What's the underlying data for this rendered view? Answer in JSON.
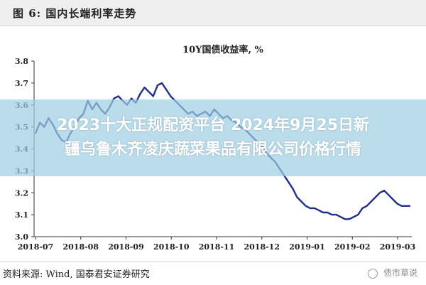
{
  "figure_title": "图 6:   国内长端利率走势",
  "overlay_text": {
    "line1": "2023十大正规配资平台 2024年9月25日新",
    "line2": "疆乌鲁木齐凌庆蔬菜果品有限公司价格行情"
  },
  "source_text": "资料来源:   Wind,  国泰君安证券研究",
  "watermark_text": "债市草说",
  "colors": {
    "line": "#1f2f8a",
    "overlay": "#9ecfe2",
    "axis": "#333333"
  },
  "chart_data": {
    "type": "line",
    "title": "10Y国债收益率,  %",
    "ylim": [
      3.0,
      3.8
    ],
    "yticks": [
      "3.8",
      "3.7",
      "3.6",
      "3.5",
      "3.4",
      "3.3",
      "3.2",
      "3.1",
      "3.0"
    ],
    "xticks": [
      "2018-07",
      "2018-08",
      "2018-09",
      "2018-10",
      "2018-11",
      "2018-12",
      "2019-01",
      "2019-02",
      "2019-03"
    ],
    "grid": false,
    "series": [
      {
        "values": [
          3.47,
          3.52,
          3.5,
          3.54,
          3.51,
          3.47,
          3.44,
          3.43,
          3.47,
          3.5,
          3.54,
          3.56,
          3.62,
          3.58,
          3.61,
          3.58,
          3.56,
          3.59,
          3.63,
          3.64,
          3.62,
          3.6,
          3.63,
          3.61,
          3.65,
          3.68,
          3.66,
          3.64,
          3.69,
          3.7,
          3.67,
          3.64,
          3.62,
          3.6,
          3.58,
          3.56,
          3.57,
          3.55,
          3.56,
          3.57,
          3.55,
          3.58,
          3.56,
          3.54,
          3.55,
          3.53,
          3.52,
          3.5,
          3.49,
          3.47,
          3.45,
          3.43,
          3.41,
          3.38,
          3.36,
          3.34,
          3.31,
          3.28,
          3.25,
          3.22,
          3.18,
          3.16,
          3.14,
          3.13,
          3.13,
          3.12,
          3.11,
          3.11,
          3.1,
          3.1,
          3.09,
          3.08,
          3.08,
          3.09,
          3.1,
          3.13,
          3.14,
          3.16,
          3.18,
          3.2,
          3.21,
          3.19,
          3.17,
          3.15,
          3.14,
          3.14,
          3.14
        ]
      }
    ]
  }
}
